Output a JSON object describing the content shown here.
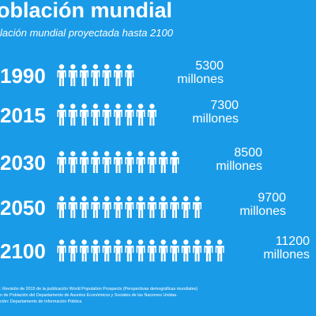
{
  "header": {
    "title": "oblación mundial",
    "subtitle": "lación mundial proyectada hasta 2100"
  },
  "chart_data": {
    "type": "bar",
    "categories": [
      "1990",
      "2015",
      "2030",
      "2050",
      "2100"
    ],
    "values": [
      5300,
      7300,
      8500,
      9700,
      11200
    ],
    "unit": "millones",
    "value_labels": [
      "5300",
      "7300",
      "8500",
      "9700",
      "11200"
    ],
    "icon_counts": [
      7,
      9,
      11,
      13,
      15
    ],
    "mark_icon": "person-icon",
    "title": "",
    "xlabel": "",
    "ylabel": ""
  },
  "source": {
    "line1": ": Revisión de 2015 de la publicación World Population Prospects (Perspectivas demográficas mundiales)",
    "line2": "n de Población del Departamento de Asuntos Económicos y Sociales de las Naciones Unidas.",
    "line3": "ción: Departamento de Información Pública"
  },
  "colors": {
    "background": "#1a9be8",
    "foreground": "#ffffff"
  }
}
